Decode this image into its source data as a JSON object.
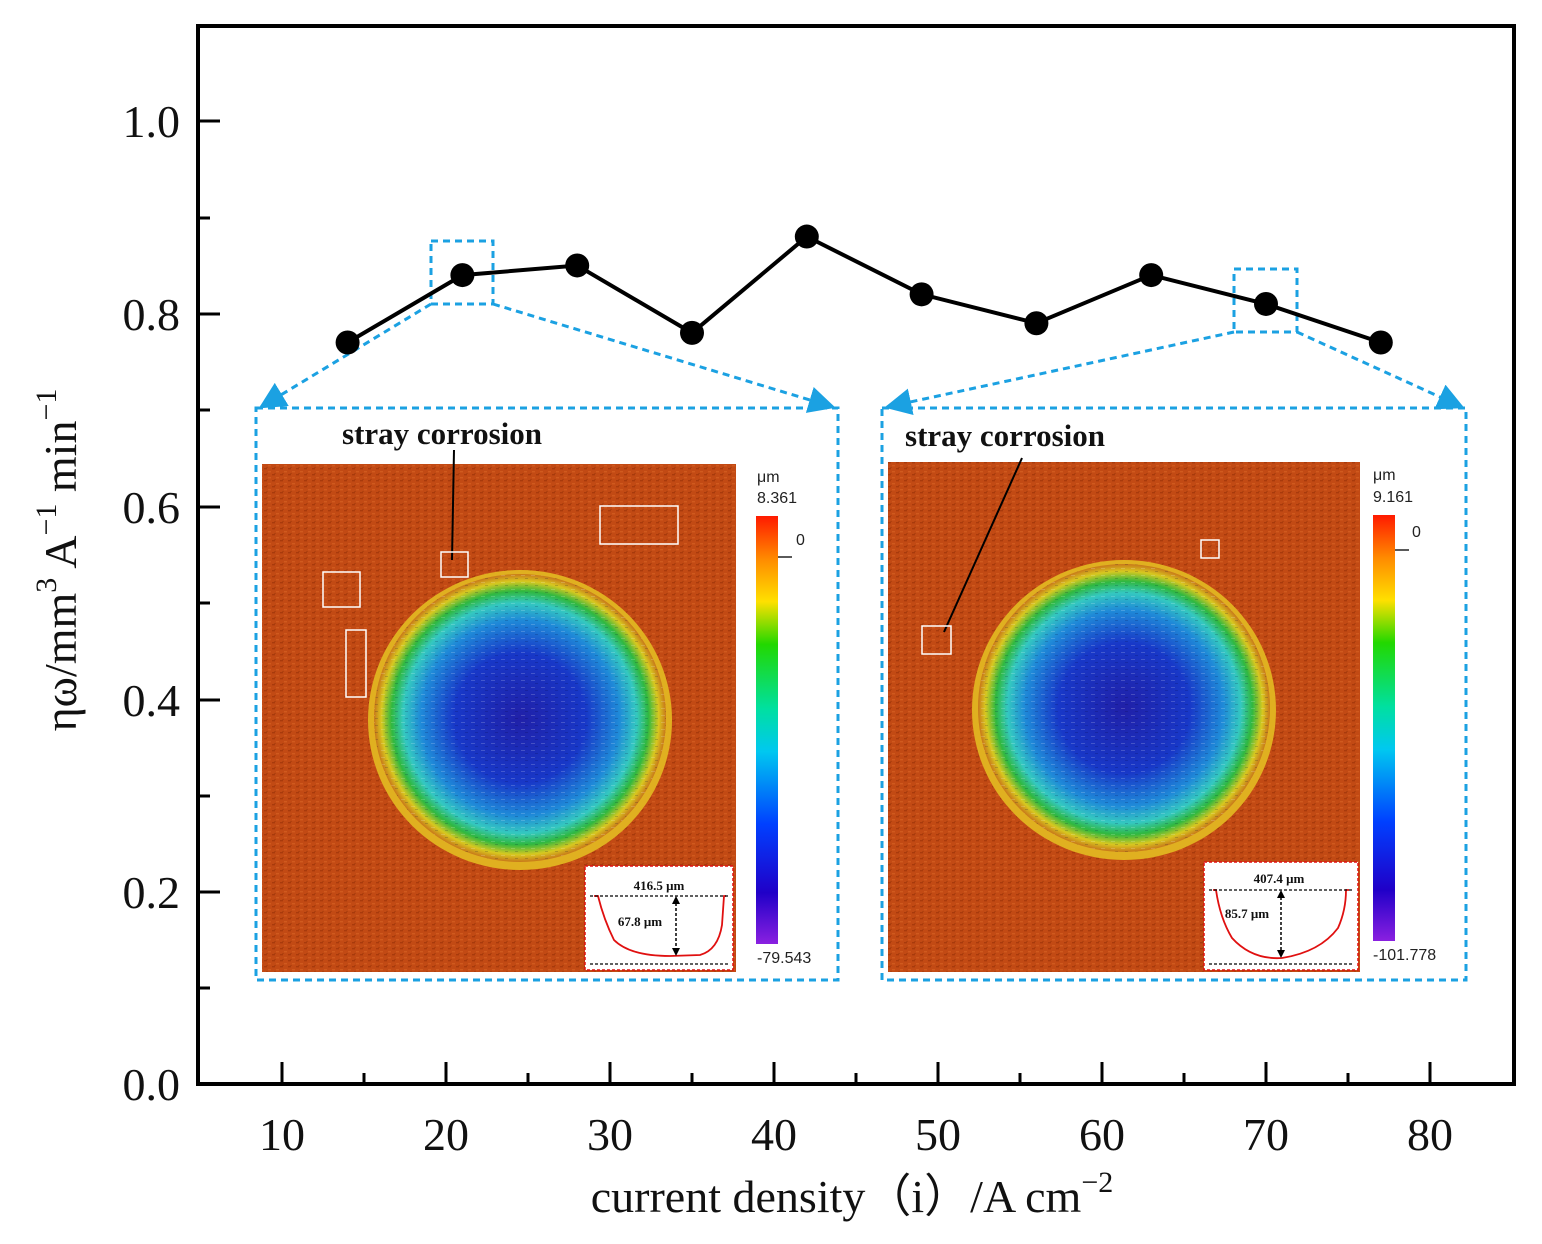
{
  "chart_data": {
    "type": "line",
    "title": "",
    "xlabel": "current density（i）/A cm",
    "xlabel_sup": "−2",
    "ylabel_parts": [
      "ηω/mm",
      "3",
      " A",
      "−1",
      " min",
      "−1"
    ],
    "xlim": [
      5,
      83
    ],
    "ylim": [
      0.0,
      1.1
    ],
    "x_ticks": [
      10,
      20,
      30,
      40,
      50,
      60,
      70,
      80
    ],
    "y_ticks": [
      0.0,
      0.2,
      0.4,
      0.6,
      0.8,
      1.0
    ],
    "x_tick_labels": [
      "10",
      "20",
      "30",
      "40",
      "50",
      "60",
      "70",
      "80"
    ],
    "y_tick_labels": [
      "0.0",
      "0.2",
      "0.4",
      "0.6",
      "0.8",
      "1.0"
    ],
    "series": [
      {
        "name": "ηω",
        "x": [
          14,
          21,
          28,
          35,
          42,
          49,
          56,
          63,
          70,
          77
        ],
        "values": [
          0.77,
          0.84,
          0.85,
          0.78,
          0.88,
          0.82,
          0.79,
          0.84,
          0.81,
          0.77
        ]
      }
    ],
    "highlighted_x": [
      21,
      70
    ],
    "insets": [
      {
        "label": "stray corrosion",
        "colorbar_unit": "μm",
        "colorbar_max": "8.361",
        "colorbar_zero": "0",
        "colorbar_min": "-79.543",
        "profile_width": "416.5 μm",
        "profile_depth": "67.8 μm"
      },
      {
        "label": "stray corrosion",
        "colorbar_unit": "μm",
        "colorbar_max": "9.161",
        "colorbar_zero": "0",
        "colorbar_min": "-101.778",
        "profile_width": "407.4 μm",
        "profile_depth": "85.7 μm"
      }
    ],
    "colors": {
      "line": "#000000",
      "highlight": "#1ba1e2",
      "surface": "#c24a14",
      "profile": "#e01010"
    }
  }
}
